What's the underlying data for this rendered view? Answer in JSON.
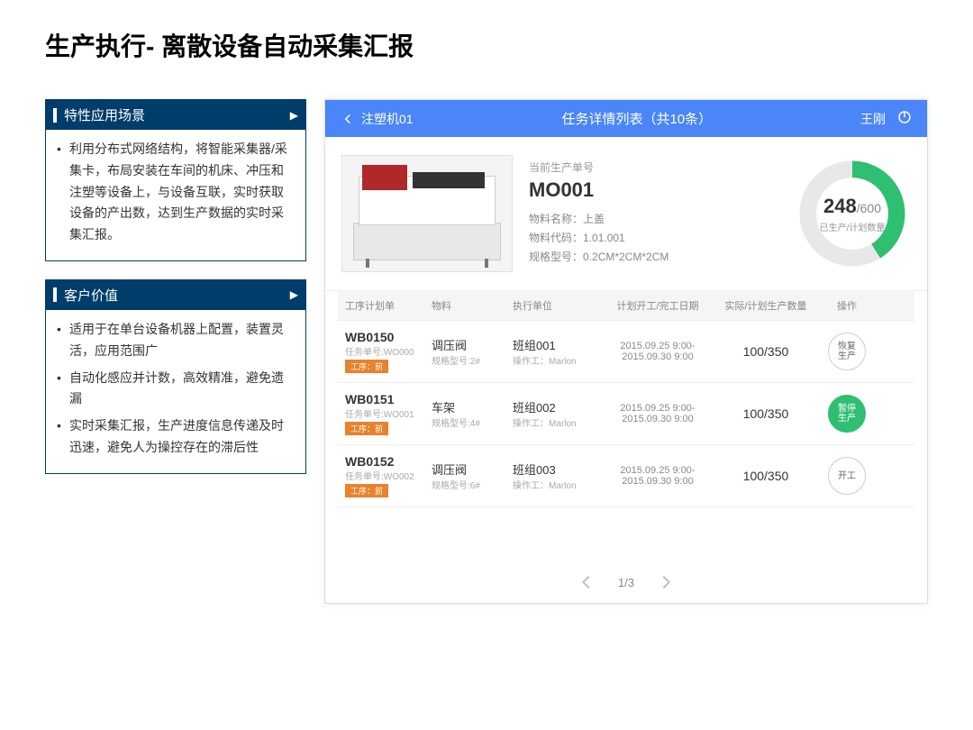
{
  "page_title": "生产执行- 离散设备自动采集汇报",
  "box1": {
    "title": "特性应用场景",
    "items": [
      "利用分布式网络结构，将智能采集器/采集卡，布局安装在车间的机床、冲压和注塑等设备上，与设备互联，实时获取设备的产出数，达到生产数据的实时采集汇报。"
    ]
  },
  "box2": {
    "title": "客户价值",
    "items": [
      "适用于在单台设备机器上配置，装置灵活，应用范围广",
      "自动化感应并计数，高效精准，避免遗漏",
      "实时采集汇报，生产进度信息传递及时迅速，避免人为操控存在的滞后性"
    ]
  },
  "app": {
    "back_text": "注塑机01",
    "header_title": "任务详情列表（共10条）",
    "user_name": "王刚",
    "order": {
      "label": "当前生产单号",
      "no": "MO001",
      "material_name_label": "物料名称：",
      "material_name": "上盖",
      "material_code_label": "物料代码：",
      "material_code": "1.01.001",
      "spec_label": "规格型号：",
      "spec": "0.2CM*2CM*2CM"
    },
    "chart": {
      "produced": 248,
      "planned": 600,
      "percent": 41,
      "label": "已生产/计划数量",
      "done_color": "#2fbf71",
      "remain_color": "#e8e8e8"
    },
    "columns": [
      "工序计划单",
      "物料",
      "执行单位",
      "计划开工/完工日期",
      "实际/计划生产数量",
      "操作"
    ],
    "rows": [
      {
        "code": "WB0150",
        "task": "任务单号:WO000",
        "tag": "工序：前",
        "material": "调压阀",
        "spec": "规格型号:2#",
        "team": "班组001",
        "operator": "操作工：Marlon",
        "date1": "2015.09.25 9:00-",
        "date2": "2015.09.30 9:00",
        "qty": "100/350",
        "op_label": "恢复生产",
        "op_active": false
      },
      {
        "code": "WB0151",
        "task": "任务单号:WO001",
        "tag": "工序：前",
        "material": "车架",
        "spec": "规格型号:4#",
        "team": "班组002",
        "operator": "操作工：Marlon",
        "date1": "2015.09.25 9:00-",
        "date2": "2015.09.30 9:00",
        "qty": "100/350",
        "op_label": "暂停生产",
        "op_active": true
      },
      {
        "code": "WB0152",
        "task": "任务单号:WO002",
        "tag": "工序：前",
        "material": "调压阀",
        "spec": "规格型号:6#",
        "team": "班组003",
        "operator": "操作工：Marlon",
        "date1": "2015.09.25 9:00-",
        "date2": "2015.09.30 9:00",
        "qty": "100/350",
        "op_label": "开工",
        "op_active": false
      }
    ],
    "pager": "1/3"
  },
  "colors": {
    "header_bg": "#003d6b",
    "app_header_bg": "#4a86f7",
    "tag_bg": "#e8822c",
    "green": "#2fbf71"
  }
}
